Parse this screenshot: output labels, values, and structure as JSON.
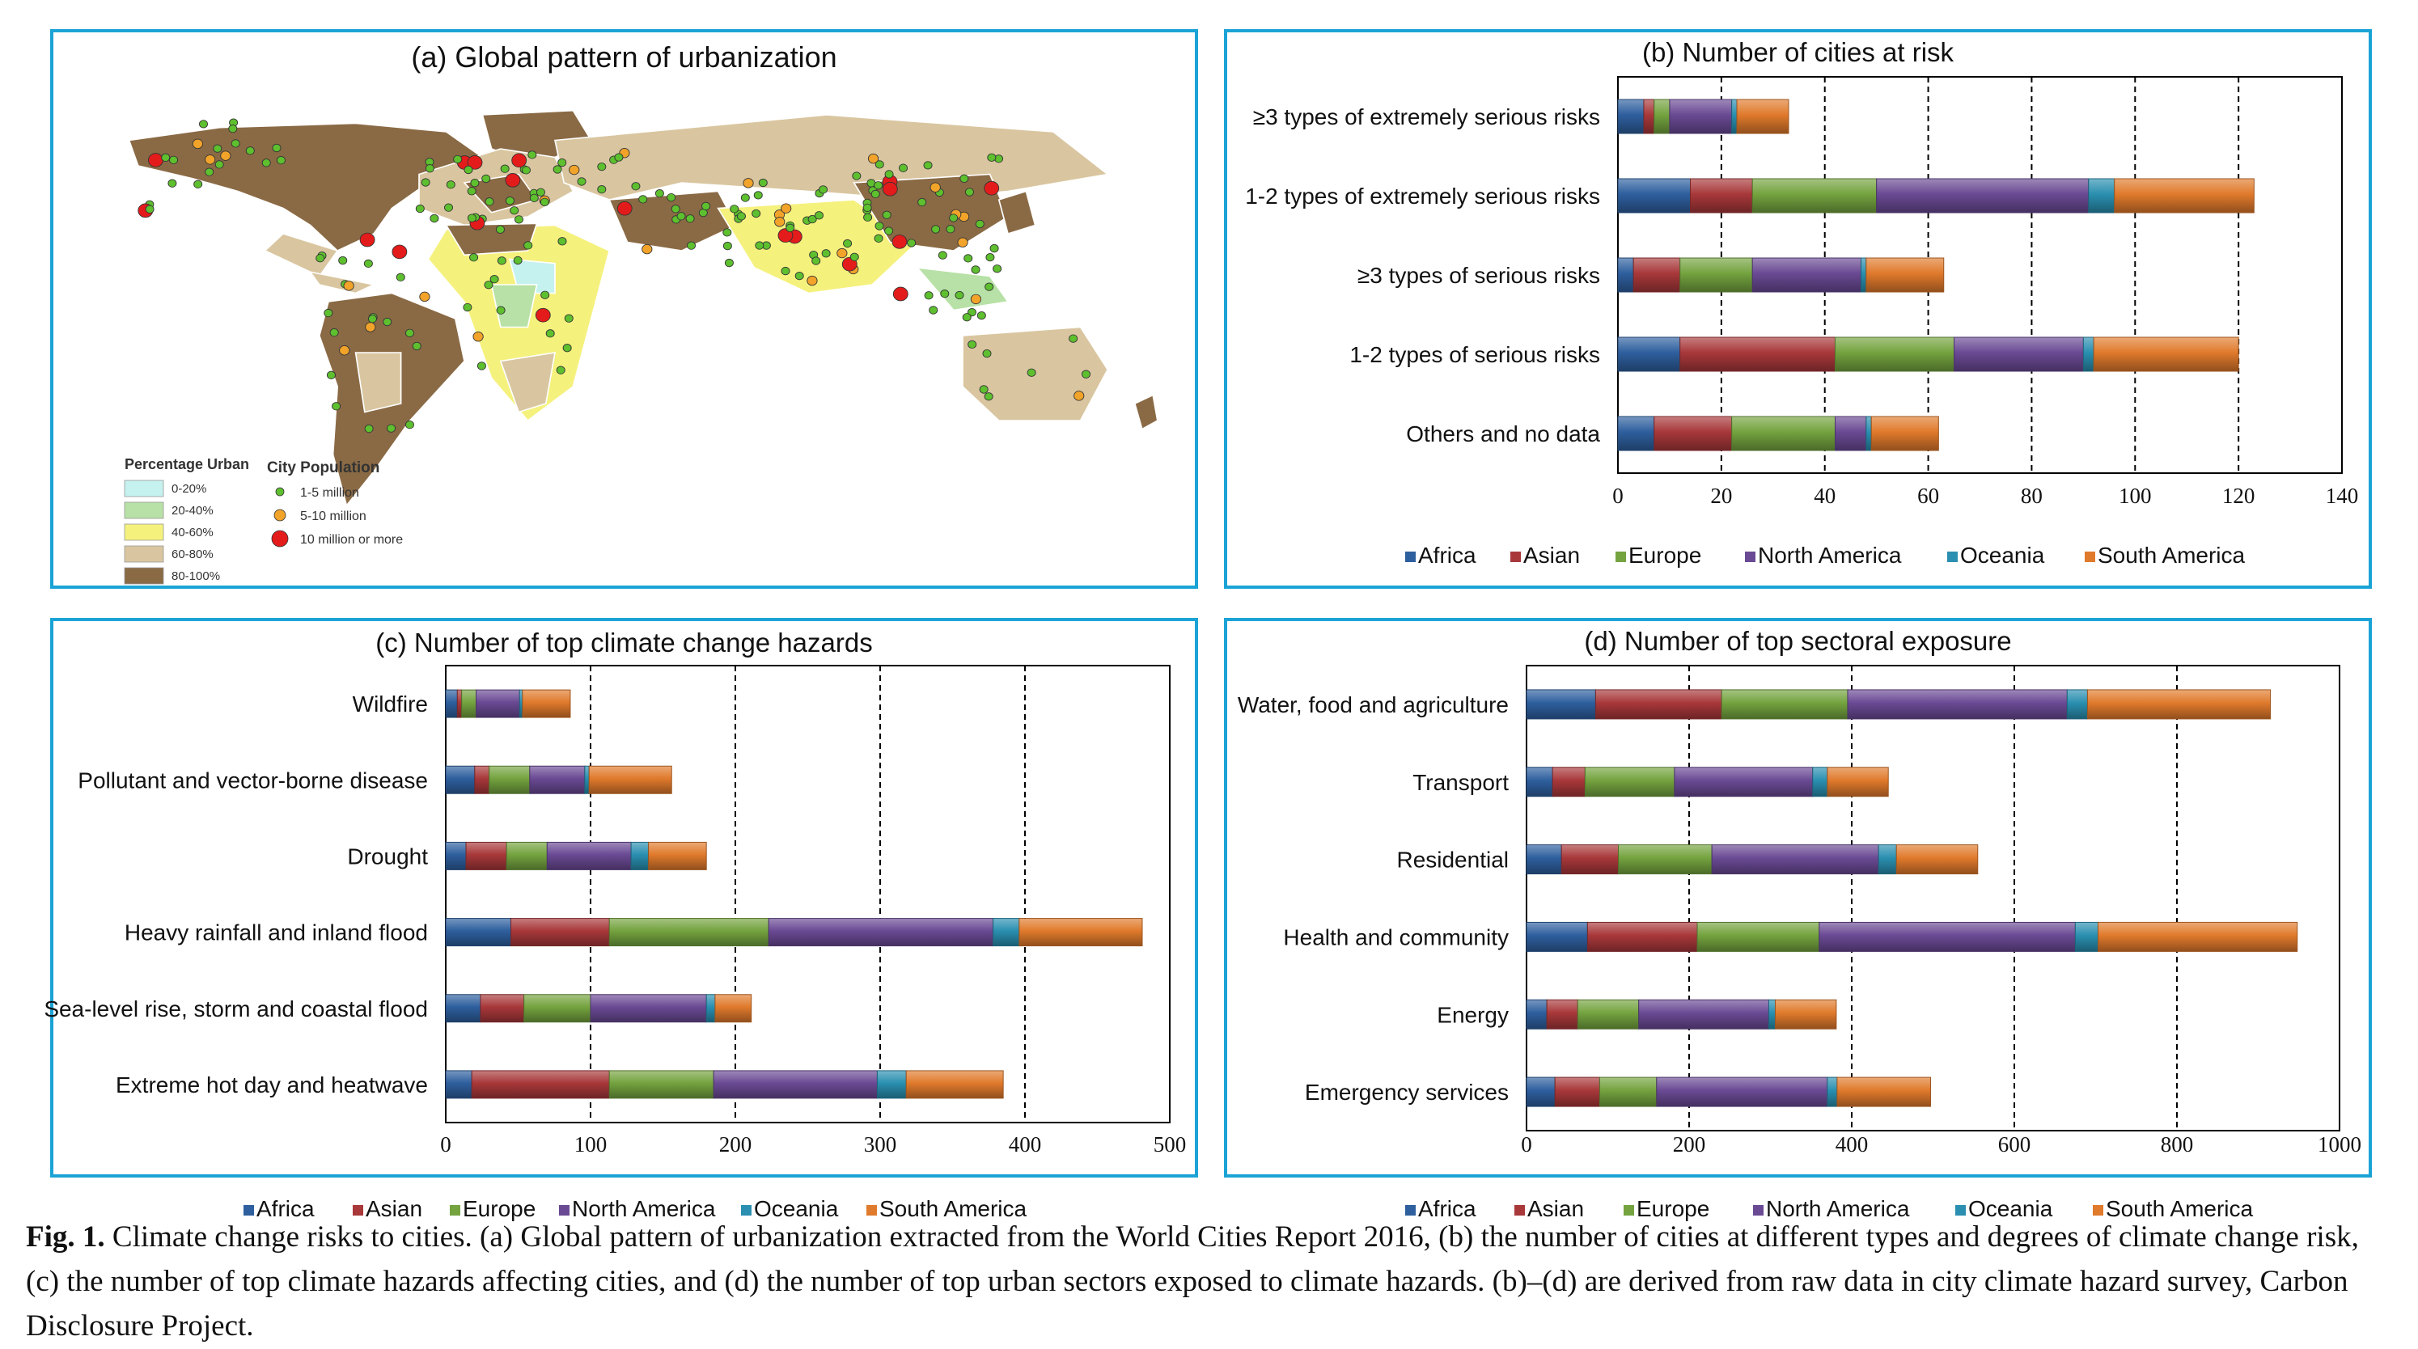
{
  "panels": {
    "a": {
      "title": "(a) Global pattern of urbanization",
      "legend_urban": {
        "title": "Percentage Urban",
        "items": [
          {
            "label": "0-20%",
            "color": "#c5f1ef"
          },
          {
            "label": "20-40%",
            "color": "#b7e1a6"
          },
          {
            "label": "40-60%",
            "color": "#f5f17d"
          },
          {
            "label": "60-80%",
            "color": "#d9c6a0"
          },
          {
            "label": "80-100%",
            "color": "#8a6a45"
          }
        ]
      },
      "legend_population": {
        "title": "City Population",
        "items": [
          {
            "label": "1-5 million",
            "color": "#5ebf2f"
          },
          {
            "label": "5-10 million",
            "color": "#f2a32a"
          },
          {
            "label": "10 million or more",
            "color": "#e41b1b"
          }
        ]
      }
    }
  },
  "chart_data": [
    {
      "id": "b",
      "type": "bar",
      "stacked": true,
      "orientation": "horizontal",
      "title": "(b) Number of cities at risk",
      "categories": [
        "≥3 types of extremely serious risks",
        "1-2 types of extremely serious risks",
        "≥3 types of serious risks",
        "1-2 types of serious risks",
        "Others and no data"
      ],
      "series": [
        {
          "name": "Africa",
          "values": [
            5,
            14,
            3,
            12,
            7
          ]
        },
        {
          "name": "Asian",
          "values": [
            2,
            12,
            9,
            30,
            15
          ]
        },
        {
          "name": "Europe",
          "values": [
            3,
            24,
            14,
            23,
            20
          ]
        },
        {
          "name": "North America",
          "values": [
            12,
            41,
            21,
            25,
            6
          ]
        },
        {
          "name": "Oceania",
          "values": [
            1,
            5,
            1,
            2,
            1
          ]
        },
        {
          "name": "South America",
          "values": [
            10,
            27,
            15,
            28,
            13
          ]
        }
      ],
      "xlim": [
        0,
        140
      ],
      "xticks": [
        0,
        20,
        40,
        60,
        80,
        100,
        120,
        140
      ],
      "grid": "vertical dashed",
      "legend": "bottom"
    },
    {
      "id": "c",
      "type": "bar",
      "stacked": true,
      "orientation": "horizontal",
      "title": "(c) Number of top climate change hazards",
      "categories": [
        "Wildfire",
        "Pollutant and vector-borne disease",
        "Drought",
        "Heavy rainfall and inland flood",
        "Sea-level rise, storm and coastal flood",
        "Extreme hot day and heatwave"
      ],
      "series": [
        {
          "name": "Africa",
          "values": [
            8,
            20,
            14,
            45,
            24,
            18
          ]
        },
        {
          "name": "Asian",
          "values": [
            3,
            10,
            28,
            68,
            30,
            95
          ]
        },
        {
          "name": "Europe",
          "values": [
            10,
            28,
            28,
            110,
            46,
            72
          ]
        },
        {
          "name": "North America",
          "values": [
            30,
            38,
            58,
            155,
            80,
            113
          ]
        },
        {
          "name": "Oceania",
          "values": [
            2,
            3,
            12,
            18,
            6,
            20
          ]
        },
        {
          "name": "South America",
          "values": [
            33,
            57,
            40,
            85,
            25,
            67
          ]
        }
      ],
      "xlim": [
        0,
        500
      ],
      "xticks": [
        0,
        100,
        200,
        300,
        400,
        500
      ],
      "grid": "vertical dashed",
      "legend": "bottom"
    },
    {
      "id": "d",
      "type": "bar",
      "stacked": true,
      "orientation": "horizontal",
      "title": "(d) Number of top sectoral exposure",
      "categories": [
        "Water, food and agriculture",
        "Transport",
        "Residential",
        "Health and community",
        "Energy",
        "Emergency services"
      ],
      "series": [
        {
          "name": "Africa",
          "values": [
            85,
            32,
            43,
            75,
            25,
            35
          ]
        },
        {
          "name": "Asian",
          "values": [
            155,
            40,
            70,
            135,
            38,
            55
          ]
        },
        {
          "name": "Europe",
          "values": [
            155,
            110,
            115,
            150,
            75,
            70
          ]
        },
        {
          "name": "North America",
          "values": [
            270,
            170,
            205,
            315,
            160,
            210
          ]
        },
        {
          "name": "Oceania",
          "values": [
            25,
            18,
            22,
            28,
            8,
            12
          ]
        },
        {
          "name": "South America",
          "values": [
            225,
            75,
            100,
            245,
            75,
            115
          ]
        }
      ],
      "xlim": [
        0,
        1000
      ],
      "xticks": [
        0,
        200,
        400,
        600,
        800,
        1000
      ],
      "grid": "vertical dashed",
      "legend": "bottom"
    }
  ],
  "series_colors": [
    "#2e5f9e",
    "#a8383a",
    "#74a33f",
    "#6a4a94",
    "#2a8fb0",
    "#e07a2c"
  ],
  "caption": {
    "label": "Fig. 1.",
    "text": "Climate change risks to cities. (a) Global pattern of urbanization extracted from the World Cities Report 2016, (b) the number of cities at different types and degrees of climate change risk, (c) the number of top climate hazards affecting cities, and (d) the number of top urban sectors exposed to climate hazards. (b)–(d) are derived from raw data in city climate hazard survey, Carbon Disclosure Project."
  }
}
